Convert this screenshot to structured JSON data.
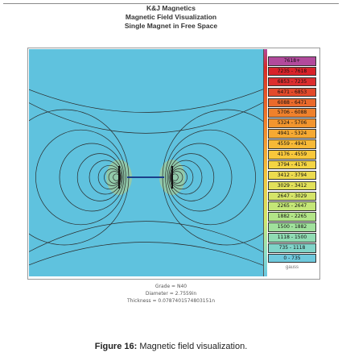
{
  "header": {
    "company": "K&J Magnetics",
    "title": "Magnetic Field Visualization",
    "subtitle": "Single Magnet in Free Space"
  },
  "colors": {
    "background_field": "#5fc2de",
    "field_line": "#2a2a2a",
    "magnet_core": "#f0d84a"
  },
  "legend": {
    "unit": "gauss",
    "items": [
      {
        "label": "7618+",
        "color": "#b24a9c"
      },
      {
        "label": "7235 - 7618",
        "color": "#d8232a"
      },
      {
        "label": "6853 - 7235",
        "color": "#dc2e2f"
      },
      {
        "label": "6471 - 6853",
        "color": "#e24a2b"
      },
      {
        "label": "6088 - 6471",
        "color": "#ea6a2b"
      },
      {
        "label": "5706 - 6088",
        "color": "#ef812c"
      },
      {
        "label": "5324 - 5706",
        "color": "#f2952e"
      },
      {
        "label": "4941 - 5324",
        "color": "#f5a932"
      },
      {
        "label": "4559 - 4941",
        "color": "#f7b936"
      },
      {
        "label": "4176 - 4559",
        "color": "#f8c73b"
      },
      {
        "label": "3794 - 4176",
        "color": "#f4d443"
      },
      {
        "label": "3412 - 3794",
        "color": "#ecdb4e"
      },
      {
        "label": "3029 - 3412",
        "color": "#e2e15a"
      },
      {
        "label": "2647 - 3029",
        "color": "#d5e468"
      },
      {
        "label": "2265 - 2647",
        "color": "#c4e677"
      },
      {
        "label": "1882 - 2265",
        "color": "#b2e587"
      },
      {
        "label": "1500 - 1882",
        "color": "#a0e19c"
      },
      {
        "label": "1118 - 1500",
        "color": "#90dcb3"
      },
      {
        "label": "735 - 1118",
        "color": "#80d4c9"
      },
      {
        "label": "0 - 735",
        "color": "#6fc9dd"
      }
    ]
  },
  "specs": {
    "grade": "Grade = N40",
    "diameter": "Diameter = 2.7559in",
    "thickness": "Thickness = 0.0787401574803151n"
  },
  "caption": {
    "prefix": "Figure 16:",
    "text": " Magnetic field visualization."
  }
}
